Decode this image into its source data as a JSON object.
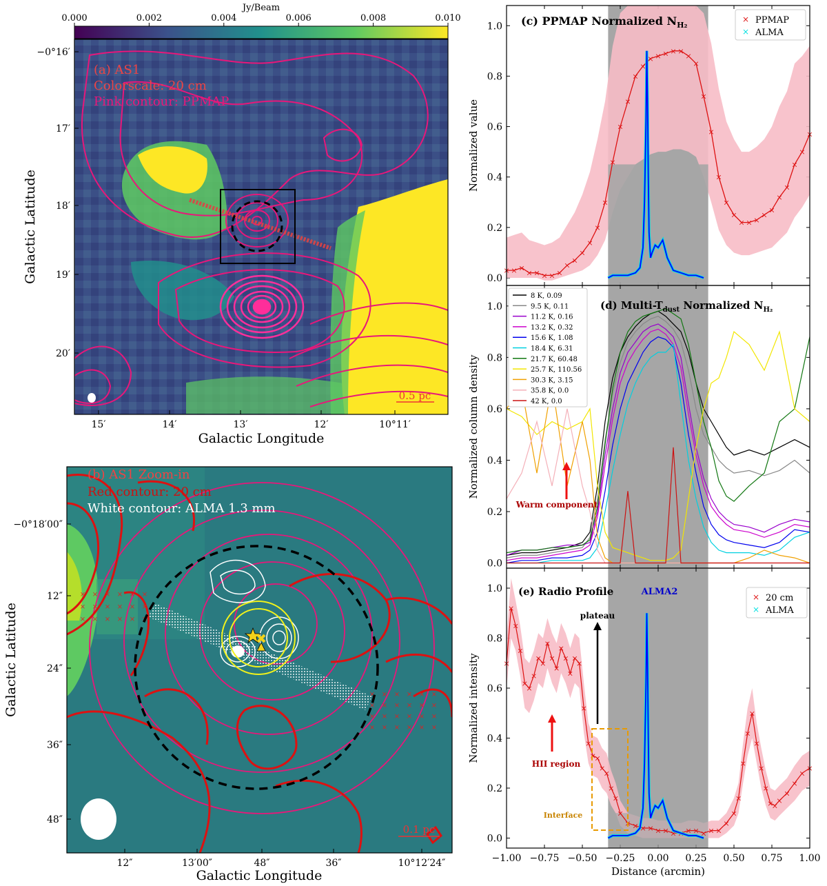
{
  "colorbar": {
    "label": "Jy/Beam",
    "ticks": [
      "0.000",
      "0.002",
      "0.004",
      "0.006",
      "0.008",
      "0.010"
    ]
  },
  "panel_a": {
    "label_1": "(a) AS1",
    "label_2": "Colorscale: 20 cm",
    "label_3": "Pink contour: PPMAP",
    "scalebar": "0.5 pc",
    "xlabel": "Galactic Longitude",
    "ylabel": "Galactic Latitude",
    "xticks": [
      "15′",
      "14′",
      "13′",
      "12′",
      "10°11′"
    ],
    "yticks": [
      "−0°16′",
      "17′",
      "18′",
      "19′",
      "20′"
    ]
  },
  "panel_b": {
    "label_1": "(b) AS1 Zoom-in",
    "label_2": "Red contour: 20 cm",
    "label_3": "White contour: ALMA 1.3 mm",
    "scalebar": "0.1 pc",
    "xlabel": "Galactic Longitude",
    "ylabel": "Galactic Latitude",
    "xticks": [
      "12″",
      "13′00″",
      "48″",
      "36″",
      "10°12′24″"
    ],
    "yticks": [
      "−0°18′00″",
      "12″",
      "24″",
      "36″",
      "48″"
    ]
  },
  "colors": {
    "ppmap": "#e8177a",
    "radio": "#dd1111",
    "alma": "#00e0e0",
    "alma_line": "#0000ff",
    "shade": "#a6a6a6",
    "band": "#f7bcc6"
  },
  "chart_data": [
    {
      "type": "line",
      "title": "(c) PPMAP Normalized N",
      "title_sub": "H₂",
      "ylabel": "Normalized value",
      "xlim": [
        -1.0,
        1.0
      ],
      "ylim": [
        -0.03,
        1.08
      ],
      "yticks": [
        "0.0",
        "0.2",
        "0.4",
        "0.6",
        "0.8",
        "1.0"
      ],
      "shade_x": [
        -0.33,
        0.33
      ],
      "legend": [
        "PPMAP",
        "ALMA"
      ],
      "ppmap": {
        "x": [
          -1.0,
          -0.95,
          -0.9,
          -0.85,
          -0.8,
          -0.75,
          -0.7,
          -0.65,
          -0.6,
          -0.55,
          -0.5,
          -0.45,
          -0.4,
          -0.35,
          -0.3,
          -0.25,
          -0.2,
          -0.15,
          -0.1,
          -0.05,
          0.0,
          0.05,
          0.1,
          0.15,
          0.2,
          0.25,
          0.3,
          0.35,
          0.4,
          0.45,
          0.5,
          0.55,
          0.6,
          0.65,
          0.7,
          0.75,
          0.8,
          0.85,
          0.9,
          0.95,
          1.0
        ],
        "y": [
          0.03,
          0.03,
          0.04,
          0.02,
          0.02,
          0.01,
          0.01,
          0.02,
          0.05,
          0.07,
          0.1,
          0.14,
          0.2,
          0.3,
          0.46,
          0.6,
          0.7,
          0.8,
          0.84,
          0.87,
          0.88,
          0.89,
          0.9,
          0.9,
          0.88,
          0.85,
          0.72,
          0.58,
          0.4,
          0.3,
          0.25,
          0.22,
          0.22,
          0.23,
          0.25,
          0.27,
          0.32,
          0.36,
          0.45,
          0.5,
          0.57
        ],
        "band_lo": [
          0.0,
          0.0,
          0.0,
          0.0,
          0.0,
          -0.01,
          -0.01,
          0.0,
          0.01,
          0.02,
          0.03,
          0.05,
          0.09,
          0.15,
          0.26,
          0.35,
          0.4,
          0.45,
          0.47,
          0.49,
          0.5,
          0.5,
          0.51,
          0.51,
          0.5,
          0.48,
          0.4,
          0.3,
          0.19,
          0.13,
          0.1,
          0.09,
          0.09,
          0.1,
          0.11,
          0.12,
          0.15,
          0.18,
          0.24,
          0.28,
          0.33
        ],
        "band_hi": [
          0.16,
          0.17,
          0.18,
          0.15,
          0.14,
          0.13,
          0.14,
          0.16,
          0.21,
          0.26,
          0.33,
          0.42,
          0.55,
          0.7,
          0.92,
          1.05,
          1.08,
          1.08,
          1.08,
          1.08,
          1.08,
          1.08,
          1.08,
          1.08,
          1.08,
          1.08,
          1.05,
          0.93,
          0.75,
          0.62,
          0.55,
          0.5,
          0.5,
          0.52,
          0.55,
          0.6,
          0.68,
          0.74,
          0.85,
          0.88,
          0.92
        ]
      },
      "alma": {
        "x": [
          -0.33,
          -0.3,
          -0.25,
          -0.2,
          -0.15,
          -0.12,
          -0.1,
          -0.09,
          -0.08,
          -0.075,
          -0.07,
          -0.065,
          -0.06,
          -0.05,
          -0.04,
          -0.02,
          0.0,
          0.03,
          0.06,
          0.1,
          0.15,
          0.2,
          0.25,
          0.3
        ],
        "y": [
          0.0,
          0.01,
          0.01,
          0.01,
          0.02,
          0.04,
          0.12,
          0.3,
          0.62,
          0.9,
          0.7,
          0.4,
          0.18,
          0.08,
          0.1,
          0.13,
          0.12,
          0.15,
          0.08,
          0.03,
          0.02,
          0.01,
          0.01,
          0.0
        ]
      }
    },
    {
      "type": "line",
      "title": "(d) Multi-T",
      "title_sub": "dust",
      "title_tail": " Normalized N",
      "title_sub2": "H₂",
      "ylabel": "Normalized column density",
      "xlim": [
        -1.0,
        1.0
      ],
      "ylim": [
        -0.02,
        1.08
      ],
      "yticks": [
        "0.0",
        "0.2",
        "0.4",
        "0.6",
        "0.8",
        "1.0"
      ],
      "shade_x": [
        -0.33,
        0.33
      ],
      "annotation": "Warm component",
      "x": [
        -1.0,
        -0.9,
        -0.8,
        -0.7,
        -0.6,
        -0.5,
        -0.45,
        -0.4,
        -0.35,
        -0.3,
        -0.25,
        -0.2,
        -0.15,
        -0.1,
        -0.05,
        0.0,
        0.05,
        0.1,
        0.15,
        0.2,
        0.25,
        0.3,
        0.35,
        0.4,
        0.45,
        0.5,
        0.6,
        0.7,
        0.8,
        0.9,
        1.0
      ],
      "series": [
        {
          "name": "8 K, 0.09",
          "color": "#000000",
          "values": [
            0.03,
            0.04,
            0.04,
            0.05,
            0.06,
            0.08,
            0.12,
            0.3,
            0.55,
            0.72,
            0.82,
            0.88,
            0.92,
            0.95,
            0.97,
            0.98,
            0.96,
            0.93,
            0.9,
            0.82,
            0.7,
            0.6,
            0.55,
            0.5,
            0.45,
            0.42,
            0.44,
            0.42,
            0.45,
            0.48,
            0.45
          ]
        },
        {
          "name": "9.5 K, 0.11",
          "color": "#888888",
          "values": [
            0.02,
            0.03,
            0.03,
            0.04,
            0.05,
            0.06,
            0.1,
            0.25,
            0.48,
            0.66,
            0.78,
            0.86,
            0.9,
            0.93,
            0.95,
            0.96,
            0.94,
            0.91,
            0.86,
            0.75,
            0.6,
            0.5,
            0.45,
            0.4,
            0.37,
            0.35,
            0.36,
            0.34,
            0.36,
            0.4,
            0.35
          ]
        },
        {
          "name": "11.2 K, 0.16",
          "color": "#9900cc",
          "values": [
            0.03,
            0.05,
            0.05,
            0.06,
            0.07,
            0.07,
            0.08,
            0.2,
            0.42,
            0.6,
            0.74,
            0.82,
            0.86,
            0.9,
            0.92,
            0.93,
            0.91,
            0.88,
            0.8,
            0.62,
            0.45,
            0.33,
            0.25,
            0.2,
            0.17,
            0.15,
            0.14,
            0.12,
            0.15,
            0.17,
            0.16
          ]
        },
        {
          "name": "13.2 K, 0.32",
          "color": "#cc00cc",
          "values": [
            0.01,
            0.02,
            0.02,
            0.03,
            0.04,
            0.05,
            0.07,
            0.18,
            0.38,
            0.56,
            0.7,
            0.78,
            0.83,
            0.87,
            0.9,
            0.91,
            0.89,
            0.85,
            0.76,
            0.58,
            0.42,
            0.3,
            0.22,
            0.18,
            0.15,
            0.13,
            0.12,
            0.1,
            0.12,
            0.15,
            0.14
          ]
        },
        {
          "name": "15.6 K, 1.08",
          "color": "#0000ee",
          "values": [
            0.0,
            0.01,
            0.01,
            0.02,
            0.02,
            0.03,
            0.05,
            0.12,
            0.28,
            0.46,
            0.6,
            0.7,
            0.76,
            0.82,
            0.86,
            0.88,
            0.87,
            0.84,
            0.7,
            0.5,
            0.35,
            0.22,
            0.15,
            0.11,
            0.09,
            0.08,
            0.07,
            0.06,
            0.08,
            0.13,
            0.12
          ]
        },
        {
          "name": "18.4 K, 6.31",
          "color": "#00d0e0",
          "values": [
            0.0,
            0.0,
            0.0,
            0.01,
            0.01,
            0.01,
            0.02,
            0.06,
            0.2,
            0.36,
            0.5,
            0.62,
            0.7,
            0.76,
            0.8,
            0.82,
            0.82,
            0.85,
            0.62,
            0.4,
            0.25,
            0.14,
            0.08,
            0.05,
            0.04,
            0.04,
            0.04,
            0.03,
            0.05,
            0.1,
            0.12
          ]
        },
        {
          "name": "21.7 K, 60.48",
          "color": "#117711",
          "values": [
            0.04,
            0.05,
            0.05,
            0.06,
            0.06,
            0.07,
            0.09,
            0.22,
            0.46,
            0.68,
            0.82,
            0.9,
            0.94,
            0.96,
            0.97,
            0.98,
            0.99,
            0.97,
            0.95,
            0.85,
            0.7,
            0.55,
            0.45,
            0.32,
            0.26,
            0.24,
            0.3,
            0.35,
            0.55,
            0.6,
            0.88
          ]
        },
        {
          "name": "25.7 K, 110.56",
          "color": "#f2e600",
          "values": [
            0.6,
            0.57,
            0.5,
            0.55,
            0.52,
            0.55,
            0.6,
            0.3,
            0.12,
            0.06,
            0.05,
            0.04,
            0.03,
            0.02,
            0.01,
            0.01,
            0.01,
            0.02,
            0.05,
            0.25,
            0.45,
            0.6,
            0.7,
            0.72,
            0.8,
            0.9,
            0.85,
            0.75,
            0.9,
            0.6,
            0.55
          ]
        },
        {
          "name": "30.3 K, 3.15",
          "color": "#f0a000",
          "values": [
            0.6,
            0.68,
            0.35,
            0.7,
            0.3,
            0.55,
            0.4,
            0.1,
            0.02,
            0.0,
            0.0,
            0.0,
            0.0,
            0.0,
            0.0,
            0.0,
            0.0,
            0.0,
            0.0,
            0.0,
            0.0,
            0.0,
            0.0,
            0.0,
            0.0,
            0.0,
            0.02,
            0.05,
            0.03,
            0.02,
            0.0
          ]
        },
        {
          "name": "35.8 K, 0.0",
          "color": "#f4b0b8",
          "values": [
            0.25,
            0.35,
            0.55,
            0.3,
            0.6,
            0.3,
            0.2,
            0.05,
            0.0,
            0.0,
            0.0,
            0.0,
            0.0,
            0.0,
            0.0,
            0.0,
            0.0,
            0.0,
            0.0,
            0.0,
            0.0,
            0.0,
            0.0,
            0.0,
            0.0,
            0.0,
            0.0,
            0.0,
            0.0,
            0.0,
            0.0
          ]
        },
        {
          "name": "42 K, 0.0",
          "color": "#cc1111",
          "values": [
            0.0,
            0.0,
            0.0,
            0.0,
            0.0,
            0.0,
            0.0,
            0.0,
            0.0,
            0.0,
            0.0,
            0.28,
            0.0,
            0.0,
            0.0,
            0.0,
            0.0,
            0.45,
            0.0,
            0.0,
            0.0,
            0.0,
            0.0,
            0.0,
            0.0,
            0.0,
            0.0,
            0.0,
            0.0,
            0.0,
            0.0
          ]
        }
      ]
    },
    {
      "type": "line",
      "title": "(e) Radio Profile",
      "ylabel": "Normalized intensity",
      "xlabel": "Distance (arcmin)",
      "xlim": [
        -1.0,
        1.0
      ],
      "ylim": [
        -0.04,
        1.08
      ],
      "xticks": [
        "−1.00",
        "−0.75",
        "−0.50",
        "−0.25",
        "0.00",
        "0.25",
        "0.50",
        "0.75",
        "1.00"
      ],
      "yticks": [
        "0.0",
        "0.2",
        "0.4",
        "0.6",
        "0.8",
        "1.0"
      ],
      "shade_x": [
        -0.33,
        0.33
      ],
      "legend": [
        "20 cm",
        "ALMA"
      ],
      "annotations": [
        "ALMA2",
        "plateau",
        "HII region",
        "Interface"
      ],
      "radio": {
        "x": [
          -1.0,
          -0.97,
          -0.94,
          -0.91,
          -0.88,
          -0.85,
          -0.82,
          -0.79,
          -0.76,
          -0.73,
          -0.7,
          -0.67,
          -0.64,
          -0.61,
          -0.58,
          -0.55,
          -0.52,
          -0.49,
          -0.46,
          -0.43,
          -0.4,
          -0.37,
          -0.34,
          -0.31,
          -0.28,
          -0.25,
          -0.2,
          -0.15,
          -0.1,
          -0.05,
          0.0,
          0.05,
          0.1,
          0.15,
          0.2,
          0.25,
          0.3,
          0.35,
          0.4,
          0.45,
          0.5,
          0.53,
          0.56,
          0.59,
          0.62,
          0.65,
          0.68,
          0.71,
          0.74,
          0.77,
          0.8,
          0.85,
          0.9,
          0.95,
          1.0
        ],
        "y": [
          0.7,
          0.92,
          0.85,
          0.75,
          0.62,
          0.6,
          0.65,
          0.72,
          0.7,
          0.78,
          0.72,
          0.68,
          0.76,
          0.72,
          0.66,
          0.72,
          0.7,
          0.52,
          0.38,
          0.33,
          0.32,
          0.28,
          0.26,
          0.2,
          0.16,
          0.1,
          0.06,
          0.05,
          0.04,
          0.04,
          0.03,
          0.03,
          0.02,
          0.02,
          0.03,
          0.03,
          0.02,
          0.03,
          0.03,
          0.06,
          0.1,
          0.16,
          0.3,
          0.42,
          0.5,
          0.38,
          0.28,
          0.2,
          0.14,
          0.13,
          0.15,
          0.18,
          0.22,
          0.26,
          0.28
        ],
        "band_lo": [
          0.6,
          0.8,
          0.75,
          0.65,
          0.52,
          0.5,
          0.55,
          0.62,
          0.6,
          0.68,
          0.62,
          0.58,
          0.66,
          0.62,
          0.56,
          0.62,
          0.6,
          0.42,
          0.3,
          0.25,
          0.24,
          0.2,
          0.18,
          0.13,
          0.1,
          0.05,
          0.02,
          0.01,
          0.0,
          0.0,
          0.0,
          0.0,
          0.0,
          0.0,
          0.0,
          0.0,
          0.0,
          0.0,
          0.0,
          0.02,
          0.05,
          0.1,
          0.22,
          0.33,
          0.4,
          0.3,
          0.2,
          0.13,
          0.08,
          0.07,
          0.09,
          0.12,
          0.15,
          0.19,
          0.21
        ],
        "band_hi": [
          0.8,
          1.04,
          0.95,
          0.85,
          0.72,
          0.7,
          0.75,
          0.82,
          0.8,
          0.88,
          0.82,
          0.78,
          0.86,
          0.82,
          0.76,
          0.82,
          0.8,
          0.62,
          0.46,
          0.41,
          0.4,
          0.36,
          0.34,
          0.27,
          0.22,
          0.15,
          0.1,
          0.09,
          0.08,
          0.08,
          0.07,
          0.07,
          0.06,
          0.06,
          0.07,
          0.07,
          0.06,
          0.07,
          0.07,
          0.1,
          0.16,
          0.22,
          0.38,
          0.52,
          0.6,
          0.46,
          0.36,
          0.27,
          0.2,
          0.19,
          0.21,
          0.24,
          0.29,
          0.33,
          0.35
        ]
      },
      "alma": {
        "x": [
          -0.33,
          -0.3,
          -0.25,
          -0.2,
          -0.15,
          -0.12,
          -0.1,
          -0.09,
          -0.08,
          -0.075,
          -0.07,
          -0.065,
          -0.06,
          -0.05,
          -0.04,
          -0.02,
          0.0,
          0.03,
          0.06,
          0.1,
          0.15,
          0.2,
          0.25,
          0.3
        ],
        "y": [
          0.0,
          0.01,
          0.01,
          0.01,
          0.02,
          0.04,
          0.12,
          0.3,
          0.62,
          0.9,
          0.7,
          0.4,
          0.18,
          0.08,
          0.1,
          0.13,
          0.12,
          0.15,
          0.08,
          0.03,
          0.02,
          0.01,
          0.01,
          0.0
        ]
      }
    }
  ]
}
